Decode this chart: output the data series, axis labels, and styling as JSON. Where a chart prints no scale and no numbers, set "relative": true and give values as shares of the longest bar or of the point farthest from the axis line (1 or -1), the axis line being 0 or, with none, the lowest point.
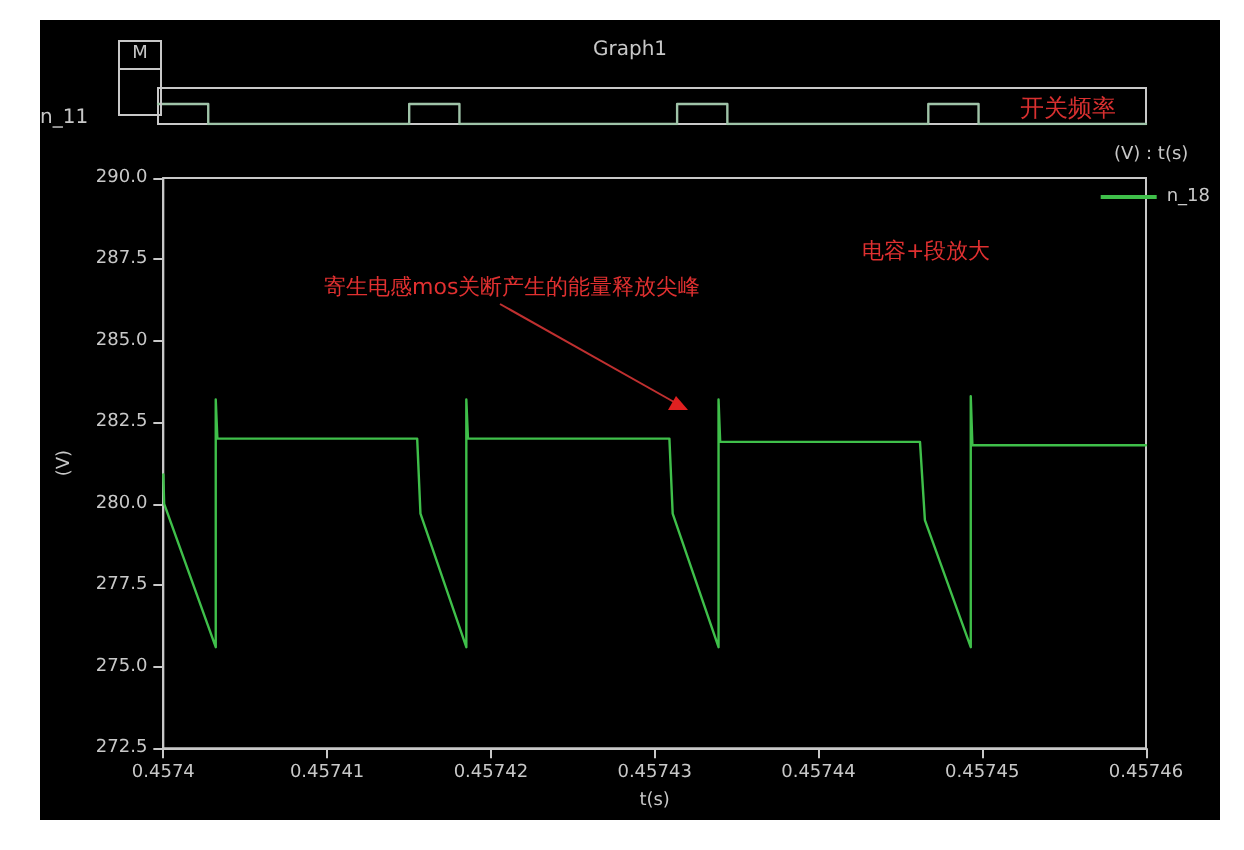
{
  "chart_data": [
    {
      "type": "step",
      "title": "Graph1",
      "ylabel": "n_11",
      "relative": true,
      "grid": false,
      "annotations": [
        "M",
        "开关频率"
      ],
      "categories": [
        null,
        null,
        null,
        null,
        null,
        null,
        null,
        null,
        null,
        null,
        null,
        null,
        null,
        null,
        null,
        null,
        null,
        null,
        null,
        null,
        null,
        null,
        null,
        null,
        null,
        null,
        null,
        null,
        null,
        null,
        null,
        null,
        null,
        null,
        null,
        null,
        null,
        null,
        null,
        null,
        null,
        null,
        null,
        null,
        null,
        null,
        null,
        null,
        null,
        null,
        null,
        null,
        null,
        null,
        null,
        null,
        null,
        null,
        null,
        null
      ],
      "series": [
        {
          "color": "#9fc3a8",
          "values": [
            1,
            1,
            1,
            0,
            0,
            0,
            0,
            0,
            0,
            0,
            0,
            0,
            0,
            0,
            0,
            1,
            1,
            1,
            0,
            0,
            0,
            0,
            0,
            0,
            0,
            0,
            0,
            0,
            0,
            0,
            0,
            1,
            1,
            1,
            0,
            0,
            0,
            0,
            0,
            0,
            0,
            0,
            0,
            0,
            0,
            0,
            1,
            1,
            1,
            0,
            0,
            0,
            0,
            0,
            0,
            0,
            0,
            0,
            0,
            0
          ]
        }
      ]
    },
    {
      "type": "line",
      "xlabel": "t(s)",
      "ylabel": "(V)",
      "grid": false,
      "legend": "top right",
      "marker": "none",
      "line_style": "solid",
      "xlim": [
        0.4574,
        0.45746
      ],
      "xticks": [
        0.4574,
        0.45741,
        0.45742,
        0.45743,
        0.45744,
        0.45745,
        0.45746
      ],
      "ylim": [
        272.5,
        290
      ],
      "yticks": [
        272.5,
        {
          "value": 275,
          "label": "275.0"
        },
        277.5,
        {
          "value": 280,
          "label": "280.0"
        },
        282.5,
        {
          "value": 285,
          "label": "285.0"
        },
        287.5,
        {
          "value": 290,
          "label": "290.0"
        }
      ],
      "annotations": [
        "寄生电感mos关断产生的能量释放尖峰",
        "电容+段放大",
        "(V) : t(s)"
      ],
      "x": [
        0.4574,
        0.45740005,
        0.4574032,
        0.4574032,
        0.4574033,
        0.4574155,
        0.4574157,
        0.4574185,
        0.4574185,
        0.4574186,
        0.4574309,
        0.4574311,
        0.4574339,
        0.4574339,
        0.457434,
        0.4574462,
        0.4574465,
        0.4574493,
        0.4574493,
        0.4574494,
        0.45746
      ],
      "series": [
        {
          "name": "n_18",
          "color": "#3fbf4a",
          "values": [
            280.9,
            280.0,
            275.6,
            283.2,
            282.0,
            282.0,
            279.7,
            275.6,
            283.2,
            282.0,
            282.0,
            279.7,
            275.6,
            283.2,
            281.9,
            281.9,
            279.5,
            275.6,
            283.3,
            281.8,
            281.8
          ]
        }
      ]
    }
  ]
}
